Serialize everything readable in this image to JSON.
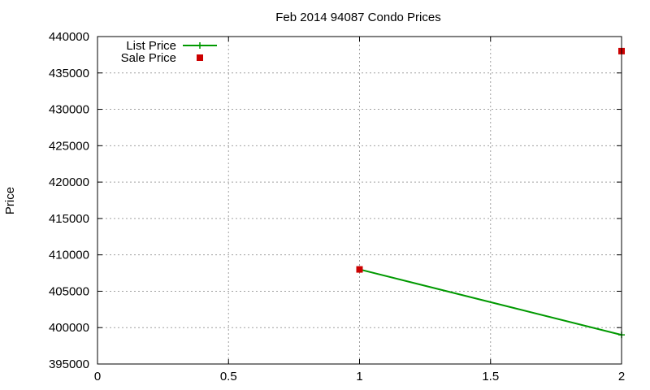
{
  "chart_data": {
    "type": "line",
    "title": "Feb 2014 94087 Condo Prices",
    "xlabel": "",
    "ylabel": "Price",
    "xlim": [
      0,
      2
    ],
    "ylim": [
      395000,
      440000
    ],
    "xticks": [
      "0",
      "0.5",
      "1",
      "1.5",
      "2"
    ],
    "yticks": [
      "395000",
      "400000",
      "405000",
      "410000",
      "415000",
      "420000",
      "425000",
      "430000",
      "435000",
      "440000"
    ],
    "grid": true,
    "legend_position": "top-left",
    "series": [
      {
        "name": "List Price",
        "style": "line",
        "color": "#009900",
        "x": [
          1,
          2
        ],
        "y": [
          408000,
          399000
        ]
      },
      {
        "name": "Sale Price",
        "style": "points",
        "color": "#cc0000",
        "x": [
          1,
          2
        ],
        "y": [
          408000,
          438000
        ]
      }
    ]
  }
}
